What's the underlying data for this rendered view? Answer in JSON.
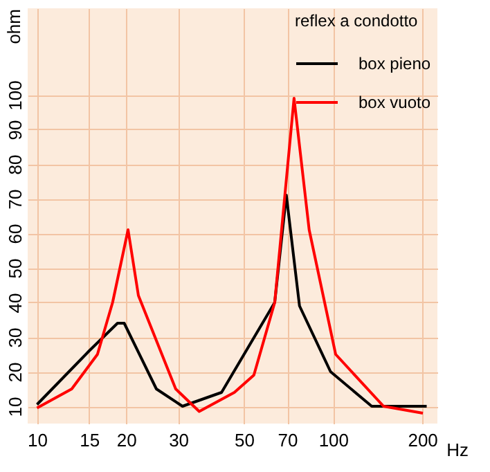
{
  "chart_data": {
    "type": "line",
    "xlabel": "Hz",
    "ylabel": "ohm",
    "legend_title": "reflex a condotto",
    "log": "x",
    "grid": true,
    "legend": "top right",
    "xlim": [
      9.3,
      225
    ],
    "ylim": [
      5,
      125
    ],
    "xticks": [
      10,
      15,
      20,
      30,
      50,
      70,
      100,
      200
    ],
    "yticks": [
      10,
      20,
      30,
      40,
      50,
      60,
      70,
      80,
      90,
      100
    ],
    "series": [
      {
        "name": "box pieno",
        "color": "#000000",
        "x": [
          10,
          15,
          18.7,
          19.7,
          25.3,
          31,
          42,
          63.5,
          69.5,
          77,
          98,
          135,
          207
        ],
        "values": [
          10.5,
          26,
          34,
          34,
          15,
          10,
          14,
          40,
          71,
          39,
          20,
          10,
          10
        ]
      },
      {
        "name": "box vuoto",
        "color": "#ff0000",
        "x": [
          10,
          13.1,
          16,
          18,
          20.3,
          22,
          29.4,
          35.3,
          46.4,
          54,
          63.5,
          73.8,
          83,
          102,
          148,
          201
        ],
        "values": [
          9.5,
          15,
          25,
          40,
          61,
          42,
          15,
          8.5,
          14,
          19,
          40,
          99,
          61,
          25,
          10,
          8
        ]
      }
    ]
  }
}
